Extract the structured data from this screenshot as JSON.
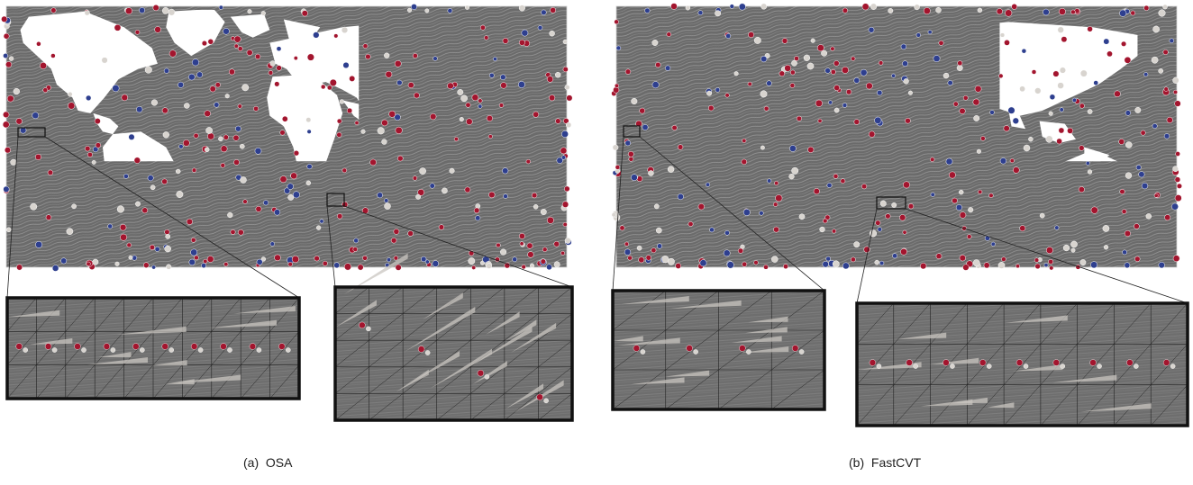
{
  "captions": [
    {
      "label": "(a)",
      "method": "OSA"
    },
    {
      "label": "(b)",
      "method": "FastCVT"
    }
  ],
  "colors": {
    "ocean": "#6b6b6b",
    "land": "#ffffff",
    "critical_saddle": "#a3152e",
    "critical_source": "#2e3f8f",
    "critical_neutral": "#d8d4cf",
    "frame": "#111111"
  },
  "panels": [
    {
      "id": "osa",
      "insets": 2
    },
    {
      "id": "fastcvt",
      "insets": 2
    }
  ]
}
